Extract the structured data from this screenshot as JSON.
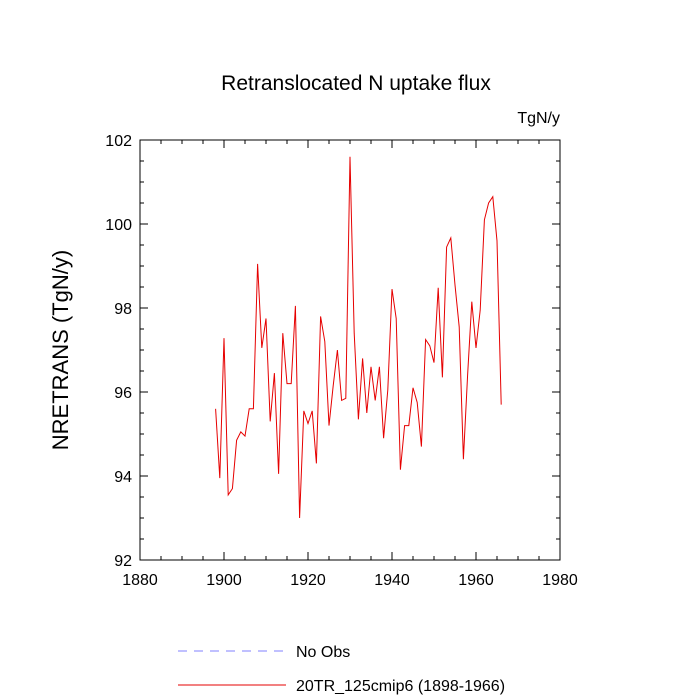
{
  "chart_data": {
    "type": "line",
    "title": "Retranslocated N uptake flux",
    "units": "TgN/y",
    "xlabel": "",
    "ylabel": "NRETRANS  (TgN/y)",
    "xlim": [
      1880,
      1980
    ],
    "ylim": [
      92,
      102
    ],
    "xticks": [
      1880,
      1900,
      1920,
      1940,
      1960,
      1980
    ],
    "yticks": [
      92,
      94,
      96,
      98,
      100,
      102
    ],
    "grid": false,
    "legend_position": "bottom",
    "legend": [
      {
        "name": "No Obs",
        "color": "#8080ff",
        "dash": "dashed"
      },
      {
        "name": "20TR_125cmip6 (1898-1966)",
        "color": "#e60000",
        "dash": "solid"
      }
    ],
    "series": [
      {
        "name": "20TR_125cmip6 (1898-1966)",
        "color": "#e60000",
        "x": [
          1898,
          1899,
          1900,
          1901,
          1902,
          1903,
          1904,
          1905,
          1906,
          1907,
          1908,
          1909,
          1910,
          1911,
          1912,
          1913,
          1914,
          1915,
          1916,
          1917,
          1918,
          1919,
          1920,
          1921,
          1922,
          1923,
          1924,
          1925,
          1926,
          1927,
          1928,
          1929,
          1930,
          1931,
          1932,
          1933,
          1934,
          1935,
          1936,
          1937,
          1938,
          1939,
          1940,
          1941,
          1942,
          1943,
          1944,
          1945,
          1946,
          1947,
          1948,
          1949,
          1950,
          1951,
          1952,
          1953,
          1954,
          1955,
          1956,
          1957,
          1958,
          1959,
          1960,
          1961,
          1962,
          1963,
          1964,
          1965,
          1966
        ],
        "values": [
          95.6,
          93.95,
          97.28,
          93.55,
          93.7,
          94.85,
          95.05,
          94.95,
          95.6,
          95.6,
          99.05,
          97.05,
          97.75,
          95.3,
          96.45,
          94.05,
          97.4,
          96.2,
          96.2,
          98.05,
          93.0,
          95.55,
          95.25,
          95.55,
          94.3,
          97.8,
          97.2,
          95.2,
          96.15,
          97.0,
          95.8,
          95.85,
          101.6,
          97.4,
          95.35,
          96.8,
          95.5,
          96.6,
          95.8,
          96.6,
          94.9,
          96.05,
          98.45,
          97.75,
          94.15,
          95.2,
          95.2,
          96.1,
          95.75,
          94.7,
          97.25,
          97.1,
          96.7,
          98.48,
          96.35,
          99.45,
          99.67,
          98.55,
          97.55,
          94.4,
          96.4,
          98.15,
          97.05,
          97.95,
          100.1,
          100.5,
          100.65,
          99.6,
          95.7
        ]
      }
    ]
  }
}
